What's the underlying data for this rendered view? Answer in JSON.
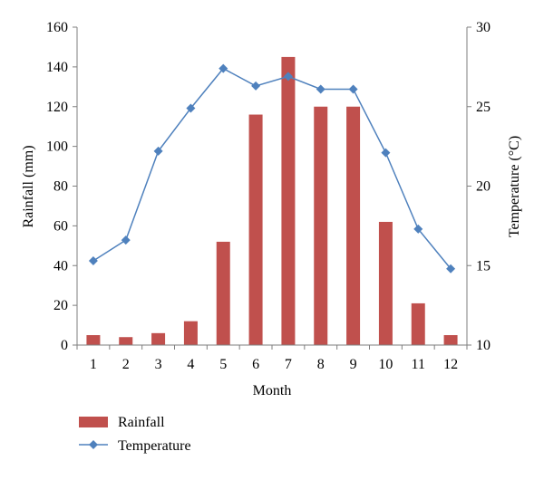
{
  "chart_data": {
    "type": "bar",
    "title": "",
    "xlabel": "Month",
    "ylabel": "Rainfall (mm)",
    "y2label": "Temperature (°C)",
    "categories": [
      "1",
      "2",
      "3",
      "4",
      "5",
      "6",
      "7",
      "8",
      "9",
      "10",
      "11",
      "12"
    ],
    "ylim": [
      0,
      160
    ],
    "y_ticks": [
      0,
      20,
      40,
      60,
      80,
      100,
      120,
      140,
      160
    ],
    "y2lim": [
      10,
      30
    ],
    "y2_ticks": [
      10,
      15,
      20,
      25,
      30
    ],
    "grid": false,
    "legend_position": "bottom-left",
    "series": [
      {
        "name": "Rainfall",
        "type": "bar",
        "axis": "left",
        "color": "#c0504d",
        "values": [
          5,
          4,
          6,
          12,
          52,
          116,
          145,
          120,
          120,
          62,
          21,
          5
        ]
      },
      {
        "name": "Temperature",
        "type": "line",
        "axis": "right",
        "color": "#4f81bd",
        "marker": "diamond",
        "values": [
          15.3,
          16.6,
          22.2,
          24.9,
          27.4,
          26.3,
          26.9,
          26.1,
          26.1,
          22.1,
          17.3,
          14.8
        ]
      }
    ]
  }
}
